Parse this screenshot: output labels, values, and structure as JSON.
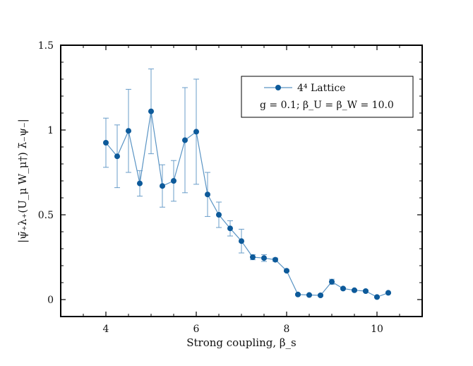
{
  "chart_data": {
    "type": "line",
    "title": "",
    "xlabel": "Strong coupling, β_s",
    "ylabel": "|ψ̄₊λ₊(U_μ W_μ†) λ̄₋ψ₋|",
    "xlim": [
      3,
      11
    ],
    "ylim": [
      -0.1,
      1.5
    ],
    "x_ticks": [
      4,
      6,
      8,
      10
    ],
    "x_tick_labels": [
      "4",
      "6",
      "8",
      "10"
    ],
    "y_ticks": [
      0,
      0.5,
      1,
      1.5
    ],
    "y_tick_labels": [
      "0",
      "0.5",
      "1",
      "1.5"
    ],
    "grid": false,
    "legend": {
      "placement": "top-right",
      "series_label": "4⁴ Lattice",
      "params_label": "g = 0.1;  β_U = β_W = 10.0"
    },
    "series": [
      {
        "name": "4⁴ Lattice",
        "color": "#0d5a9a",
        "x": [
          4.0,
          4.25,
          4.5,
          4.75,
          5.0,
          5.25,
          5.5,
          5.75,
          6.0,
          6.25,
          6.5,
          6.75,
          7.0,
          7.25,
          7.5,
          7.75,
          8.0,
          8.25,
          8.5,
          8.75,
          9.0,
          9.25,
          9.5,
          9.75,
          10.0,
          10.25
        ],
        "y": [
          0.925,
          0.845,
          0.995,
          0.685,
          1.11,
          0.67,
          0.7,
          0.94,
          0.99,
          0.62,
          0.5,
          0.42,
          0.345,
          0.25,
          0.245,
          0.235,
          0.17,
          0.03,
          0.027,
          0.025,
          0.105,
          0.065,
          0.055,
          0.05,
          0.015,
          0.04
        ],
        "yerr": [
          0.145,
          0.185,
          0.245,
          0.075,
          0.25,
          0.125,
          0.12,
          0.31,
          0.31,
          0.13,
          0.075,
          0.045,
          0.07,
          0.015,
          0.02,
          0.01,
          0.005,
          0.005,
          0.005,
          0.005,
          0.015,
          0.005,
          0.005,
          0.005,
          0.005,
          0.005
        ]
      }
    ]
  }
}
